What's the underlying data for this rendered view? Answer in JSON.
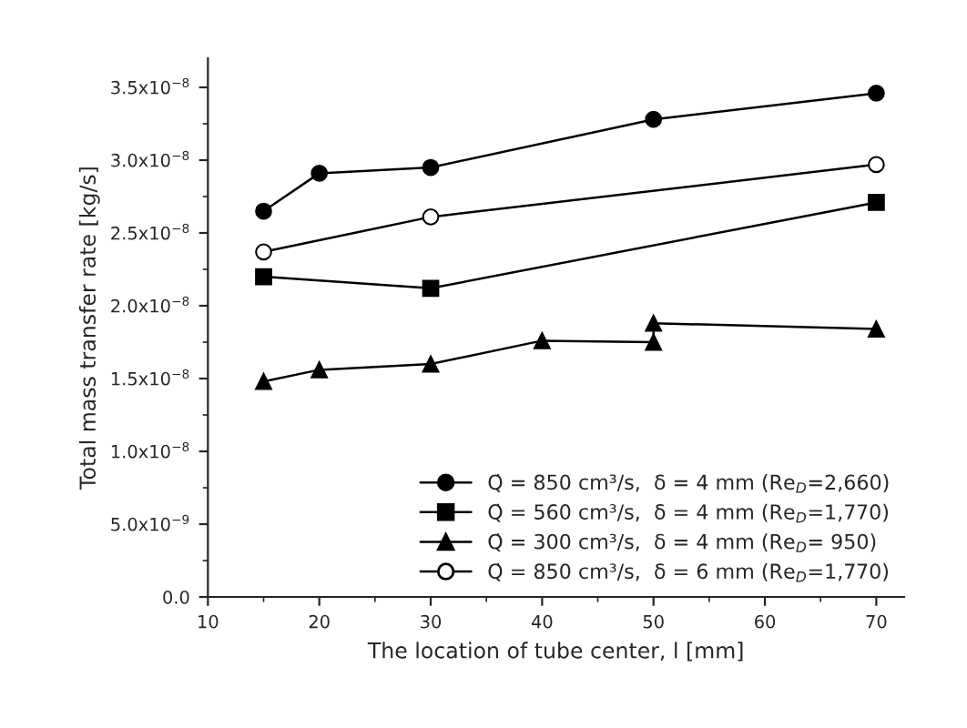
{
  "chart_data": {
    "type": "line",
    "xlabel": "The location of tube center, l [mm]",
    "ylabel": "Total mass transfer rate [kg/s]",
    "xlim": [
      10,
      72.5
    ],
    "xticks": [
      10,
      20,
      30,
      40,
      50,
      60,
      70
    ],
    "ylim": [
      0,
      3.7e-08
    ],
    "yticks": [
      {
        "value": 0,
        "label": "0.0"
      },
      {
        "value": 5e-09,
        "label": "5.0x10$^{−9}$"
      },
      {
        "value": 1e-08,
        "label": "1.0x10$^{−8}$"
      },
      {
        "value": 1.5e-08,
        "label": "1.5x10$^{−8}$"
      },
      {
        "value": 2e-08,
        "label": "2.0x10$^{−8}$"
      },
      {
        "value": 2.5e-08,
        "label": "2.5x10$^{−8}$"
      },
      {
        "value": 3e-08,
        "label": "3.0x10$^{−8}$"
      },
      {
        "value": 3.5e-08,
        "label": "3.5x10$^{−8}$"
      }
    ],
    "grid": false,
    "legend": "bottom right",
    "line_style": "solid",
    "series": [
      {
        "name": "Q̇ = 850 cm³/s,  δ = 4 mm (Re$_{D}$=2,660)",
        "color": "#000000",
        "marker": "circle",
        "x": [
          15,
          20,
          30,
          50,
          70
        ],
        "values": [
          2.65e-08,
          2.91e-08,
          2.95e-08,
          3.28e-08,
          3.46e-08
        ]
      },
      {
        "name": "Q̇ = 560 cm³/s,  δ = 4 mm (Re$_{D}$=1,770)",
        "color": "#000000",
        "marker": "square",
        "x": [
          15,
          30,
          70
        ],
        "values": [
          2.2e-08,
          2.12e-08,
          2.71e-08
        ]
      },
      {
        "name": "Q̇ = 300 cm³/s,  δ = 4 mm (Re$_{D}$= 950)",
        "color": "#000000",
        "marker": "triangle",
        "x": [
          15,
          20,
          30,
          40,
          50,
          50,
          70
        ],
        "values": [
          1.48e-08,
          1.56e-08,
          1.6e-08,
          1.76e-08,
          1.75e-08,
          1.88e-08,
          1.84e-08
        ]
      },
      {
        "name": "Q̇ = 850 cm³/s,  δ = 6 mm (Re$_{D}$=1,770)",
        "color": "#000000",
        "marker": "circle",
        "x": [
          15,
          30,
          70
        ],
        "values": [
          2.37e-08,
          2.61e-08,
          2.97e-08
        ]
      }
    ]
  }
}
